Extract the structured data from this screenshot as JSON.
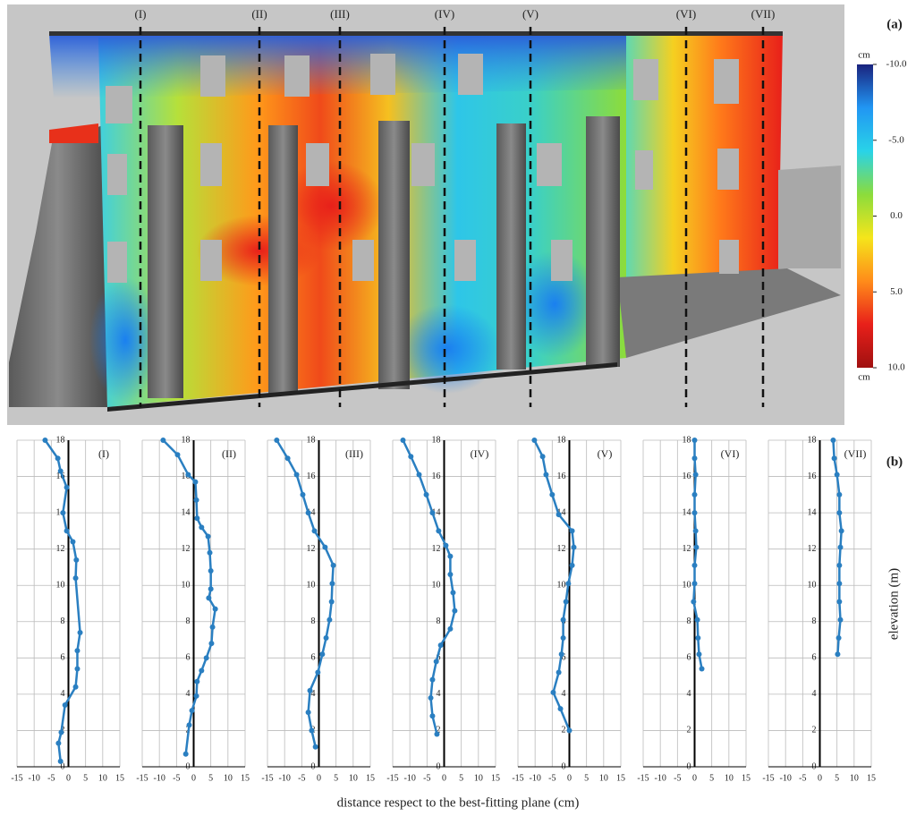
{
  "figure": {
    "panel_a_label": "(a)",
    "panel_b_label": "(b)",
    "sections": [
      "(I)",
      "(II)",
      "(III)",
      "(IV)",
      "(V)",
      "(VI)",
      "(VII)"
    ],
    "colorbar": {
      "unit_top": "cm",
      "unit_bottom": "cm",
      "lim": [
        -10,
        10
      ],
      "ticks": [
        {
          "value": -10,
          "label": "-10.0"
        },
        {
          "value": -5,
          "label": "-5.0"
        },
        {
          "value": 0,
          "label": "0.0"
        },
        {
          "value": 5,
          "label": "5.0"
        },
        {
          "value": 10,
          "label": "10.0"
        }
      ],
      "colors": [
        "#1a237e",
        "#2196f3",
        "#29d3e8",
        "#8bdc3c",
        "#f5e51b",
        "#ff8c1a",
        "#e8201a",
        "#a01010"
      ]
    },
    "x_label": "distance respect to the best-fitting plane (cm)",
    "y_label": "elevation (m)"
  },
  "chart_data": [
    {
      "type": "line",
      "title": "(I)",
      "xlim": [
        -15,
        15
      ],
      "ylim": [
        0,
        18
      ],
      "xticks": [
        -15,
        -10,
        -5,
        0,
        5,
        10,
        15
      ],
      "yticks": [
        0,
        2,
        4,
        6,
        8,
        10,
        12,
        14,
        16,
        18
      ],
      "series": [
        {
          "color": "#2a7fc1",
          "x": [
            -6.8,
            -3.1,
            -2.3,
            -0.5,
            -1.6,
            -0.5,
            1.3,
            2.3,
            2.1,
            3.4,
            2.6,
            2.6,
            2.1,
            -1,
            -2.1,
            -2.9,
            -2.3
          ],
          "values": [
            18,
            17,
            16.3,
            15.4,
            14,
            13,
            12.4,
            11.4,
            10.4,
            7.4,
            6.4,
            5.4,
            4.4,
            3.4,
            1.9,
            1.3,
            0.3
          ]
        }
      ]
    },
    {
      "type": "line",
      "title": "(II)",
      "xlim": [
        -15,
        15
      ],
      "ylim": [
        0,
        18
      ],
      "xticks": [
        -15,
        -10,
        -5,
        0,
        5,
        10,
        15
      ],
      "yticks": [
        0,
        2,
        4,
        6,
        8,
        10,
        12,
        14,
        16,
        18
      ],
      "series": [
        {
          "color": "#2a7fc1",
          "x": [
            -8.9,
            -4.7,
            -1.6,
            0.5,
            0.8,
            1,
            2.3,
            4.2,
            4.7,
            5,
            5,
            4.4,
            6.3,
            5.5,
            5.2,
            3.7,
            2.3,
            1,
            0.8,
            -0.5,
            -1.3,
            -2.3
          ],
          "values": [
            18,
            17.2,
            16.1,
            15.7,
            14.7,
            13.7,
            13.2,
            12.7,
            11.8,
            10.8,
            9.8,
            9.3,
            8.7,
            7.7,
            6.8,
            6,
            5.3,
            4.7,
            3.9,
            3.1,
            2.3,
            0.7
          ]
        }
      ]
    },
    {
      "type": "line",
      "title": "(III)",
      "xlim": [
        -15,
        15
      ],
      "ylim": [
        0,
        18
      ],
      "xticks": [
        -15,
        -10,
        -5,
        0,
        5,
        10,
        15
      ],
      "yticks": [
        0,
        2,
        4,
        6,
        8,
        10,
        12,
        14,
        16,
        18
      ],
      "series": [
        {
          "color": "#2a7fc1",
          "x": [
            -12.3,
            -9.1,
            -6.5,
            -4.7,
            -3.1,
            -1.3,
            1.8,
            4.2,
            3.9,
            3.7,
            3.1,
            2.1,
            1,
            -0.3,
            -2.6,
            -3.1,
            -2.1,
            -1
          ],
          "values": [
            18,
            17,
            16.1,
            15,
            14,
            13,
            12.1,
            11.1,
            10.1,
            9.1,
            8.1,
            7.1,
            6.2,
            5.2,
            4.2,
            3,
            2,
            1.1
          ]
        }
      ]
    },
    {
      "type": "line",
      "title": "(IV)",
      "xlim": [
        -15,
        15
      ],
      "ylim": [
        0,
        18
      ],
      "xticks": [
        -15,
        -10,
        -5,
        0,
        5,
        10,
        15
      ],
      "yticks": [
        0,
        2,
        4,
        6,
        8,
        10,
        12,
        14,
        16,
        18
      ],
      "series": [
        {
          "color": "#2a7fc1",
          "x": [
            -12,
            -9.7,
            -7.3,
            -5.2,
            -3.4,
            -1.6,
            0.5,
            1.8,
            1.8,
            2.6,
            3.1,
            1.8,
            -1,
            -2.3,
            -3.4,
            -3.9,
            -3.4,
            -2.1
          ],
          "values": [
            18,
            17.1,
            16.1,
            15,
            14,
            13,
            12.2,
            11.6,
            10.6,
            9.6,
            8.6,
            7.6,
            6.7,
            5.8,
            4.8,
            3.8,
            2.8,
            1.8
          ]
        }
      ]
    },
    {
      "type": "line",
      "title": "(V)",
      "xlim": [
        -15,
        15
      ],
      "ylim": [
        0,
        18
      ],
      "xticks": [
        -15,
        -10,
        -5,
        0,
        5,
        10,
        15
      ],
      "yticks": [
        0,
        2,
        4,
        6,
        8,
        10,
        12,
        14,
        16,
        18
      ],
      "series": [
        {
          "color": "#2a7fc1",
          "x": [
            -10.2,
            -7.8,
            -6.8,
            -5,
            -3.1,
            0.8,
            1.3,
            0.8,
            -0.3,
            -1,
            -1.8,
            -1.8,
            -2.3,
            -3.1,
            -4.7,
            -2.6,
            0
          ],
          "values": [
            18,
            17.1,
            16.1,
            15,
            13.9,
            13,
            12.1,
            11.1,
            10.1,
            9.1,
            8.1,
            7.1,
            6.2,
            5.2,
            4.1,
            3.2,
            2
          ]
        }
      ]
    },
    {
      "type": "line",
      "title": "(VI)",
      "xlim": [
        -15,
        15
      ],
      "ylim": [
        0,
        18
      ],
      "xticks": [
        -15,
        -10,
        -5,
        0,
        5,
        10,
        15
      ],
      "yticks": [
        0,
        2,
        4,
        6,
        8,
        10,
        12,
        14,
        16,
        18
      ],
      "series": [
        {
          "color": "#2a7fc1",
          "x": [
            0,
            0,
            0.3,
            0,
            0,
            0.3,
            0.5,
            0,
            0,
            -0.3,
            0.8,
            1,
            1.3,
            2.1
          ],
          "values": [
            18,
            17,
            16.1,
            15,
            14,
            13,
            12.1,
            11.1,
            10.1,
            9.1,
            8.1,
            7.1,
            6.2,
            5.4
          ]
        }
      ]
    },
    {
      "type": "line",
      "title": "(VII)",
      "xlim": [
        -15,
        15
      ],
      "ylim": [
        0,
        18
      ],
      "xticks": [
        -15,
        -10,
        -5,
        0,
        5,
        10,
        15
      ],
      "yticks": [
        0,
        2,
        4,
        6,
        8,
        10,
        12,
        14,
        16,
        18
      ],
      "series": [
        {
          "color": "#2a7fc1",
          "x": [
            3.9,
            4.2,
            5,
            5.7,
            5.7,
            6.3,
            6,
            5.7,
            5.7,
            5.7,
            6,
            5.5,
            5.2
          ],
          "values": [
            18,
            17,
            16.1,
            15,
            14,
            13,
            12.1,
            11.1,
            10.1,
            9.1,
            8.1,
            7.1,
            6.2
          ]
        }
      ]
    }
  ]
}
